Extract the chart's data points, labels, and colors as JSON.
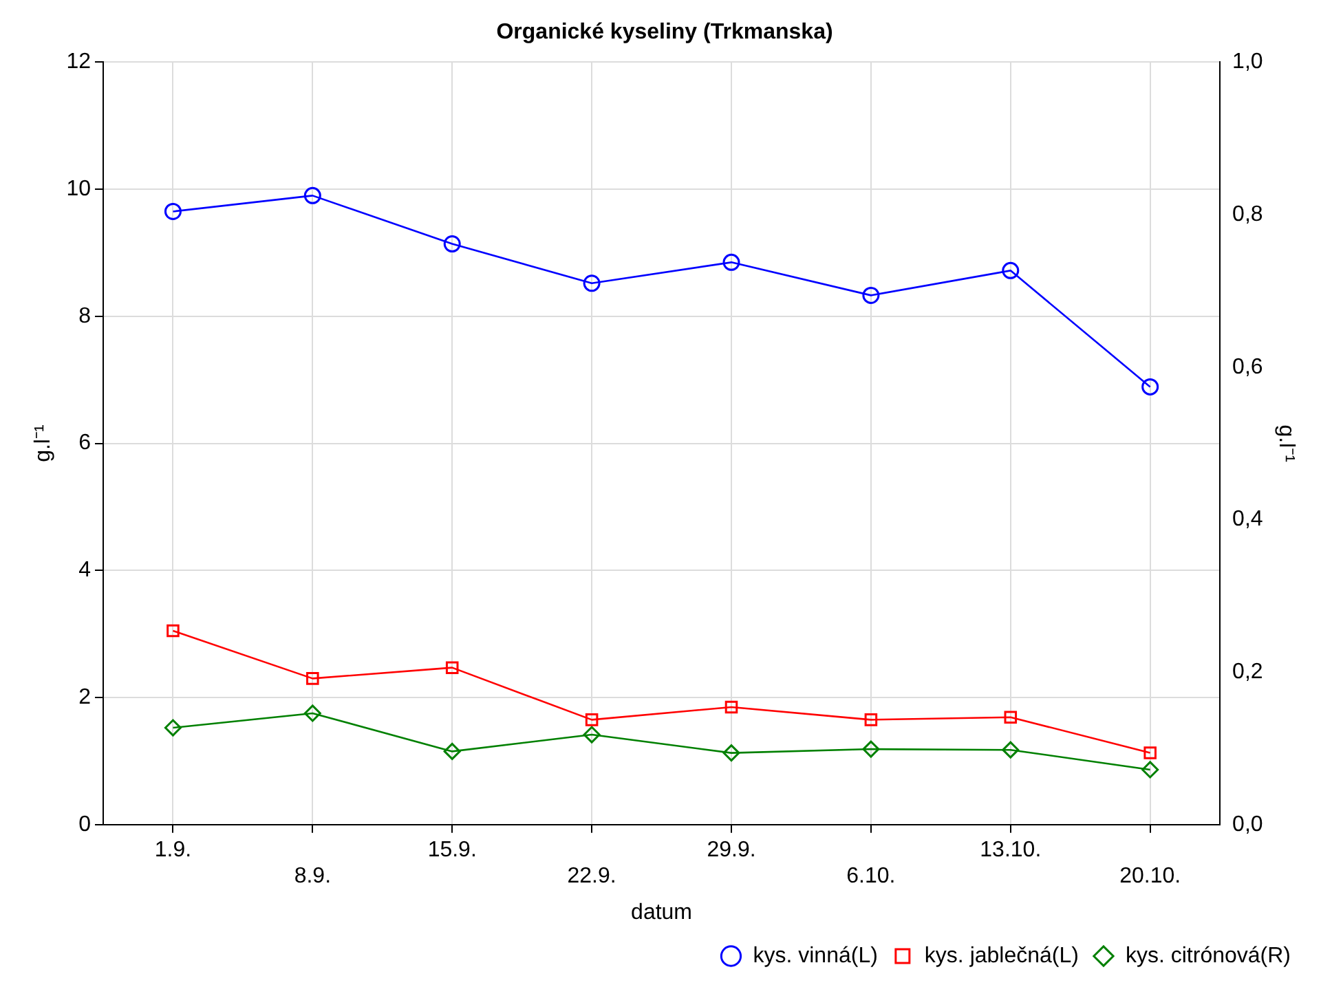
{
  "chart_data": {
    "type": "line",
    "title": "Organické kyseliny (Trkmanska)",
    "xlabel": "datum",
    "ylabel": "g.l⁻¹",
    "y2label": "g.l⁻¹",
    "categories": [
      "1.9.",
      "8.9.",
      "15.9.",
      "22.9.",
      "29.9.",
      "6.10.",
      "13.10.",
      "20.10."
    ],
    "series": [
      {
        "name": "kys. vinná(L)",
        "color": "#0000ff",
        "marker": "circle",
        "values": [
          9.65,
          9.9,
          9.14,
          8.52,
          8.85,
          8.33,
          8.72,
          6.89
        ]
      },
      {
        "name": "kys. jablečná(L)",
        "color": "#ff0000",
        "marker": "square",
        "values": [
          3.05,
          2.3,
          2.47,
          1.65,
          1.85,
          1.65,
          1.69,
          1.13
        ]
      },
      {
        "name": "kys. citrónová(R)",
        "color": "#008000",
        "marker": "diamond",
        "axis": "y2",
        "values": [
          0.127,
          0.146,
          0.096,
          0.118,
          0.094,
          0.099,
          0.098,
          0.072
        ]
      }
    ],
    "ylim": [
      0,
      12
    ],
    "yticks": [
      0,
      2,
      4,
      6,
      8,
      10,
      12
    ],
    "y2lim": [
      0,
      1
    ],
    "y2ticks": [
      {
        "value": 0,
        "label": "0,0"
      },
      {
        "value": 0.2,
        "label": "0,2"
      },
      {
        "value": 0.4,
        "label": "0,4"
      },
      {
        "value": 0.6,
        "label": "0,6"
      },
      {
        "value": 0.8,
        "label": "0,8"
      },
      {
        "value": 1,
        "label": "1,0"
      }
    ],
    "grid": true,
    "legend": "bottom right",
    "line_style": "solid"
  }
}
